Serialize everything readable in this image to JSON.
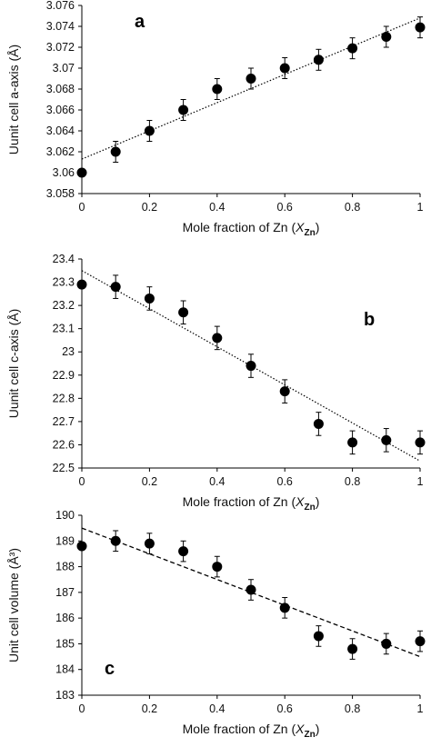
{
  "chart_data": [
    {
      "type": "scatter",
      "panel_label": "a",
      "xlabel_text": "Mole fraction of Zn (",
      "xlabel_var": "X",
      "xlabel_sub": "Zn",
      "xlabel_close": ")",
      "ylabel": "Uunit cell a-axis (Å)",
      "xlim": [
        0,
        1
      ],
      "ylim": [
        3.058,
        3.076
      ],
      "x_ticks": [
        "0",
        "0.2",
        "0.4",
        "0.6",
        "0.8",
        "1"
      ],
      "y_ticks": [
        "3.058",
        "3.06",
        "3.062",
        "3.064",
        "3.066",
        "3.068",
        "3.07",
        "3.072",
        "3.074",
        "3.076"
      ],
      "grid": false,
      "trendline": {
        "style": "dotted",
        "y_at_x0": 3.0613,
        "y_at_x1": 3.0748
      },
      "series": [
        {
          "x": [
            0,
            0.1,
            0.2,
            0.3,
            0.4,
            0.5,
            0.6,
            0.7,
            0.8,
            0.9,
            1.0
          ],
          "y": [
            3.06,
            3.062,
            3.064,
            3.066,
            3.068,
            3.069,
            3.07,
            3.0708,
            3.0719,
            3.073,
            3.0739
          ],
          "err": [
            0,
            0.001,
            0.001,
            0.001,
            0.001,
            0.001,
            0.001,
            0.001,
            0.001,
            0.001,
            0.001
          ]
        }
      ]
    },
    {
      "type": "scatter",
      "panel_label": "b",
      "xlabel_text": "Mole fraction of Zn (",
      "xlabel_var": "X",
      "xlabel_sub": "Zn",
      "xlabel_close": ")",
      "ylabel": "Uunit cell c-axis (Å)",
      "xlim": [
        0,
        1
      ],
      "ylim": [
        22.5,
        23.4
      ],
      "x_ticks": [
        "0",
        "0.2",
        "0.4",
        "0.6",
        "0.8",
        "1"
      ],
      "y_ticks": [
        "22.5",
        "22.6",
        "22.7",
        "22.8",
        "22.9",
        "23",
        "23.1",
        "23.2",
        "23.3",
        "23.4"
      ],
      "grid": false,
      "trendline": {
        "style": "dotted",
        "y_at_x0": 23.35,
        "y_at_x1": 22.53
      },
      "series": [
        {
          "x": [
            0,
            0.1,
            0.2,
            0.3,
            0.4,
            0.5,
            0.6,
            0.7,
            0.8,
            0.9,
            1.0
          ],
          "y": [
            23.29,
            23.28,
            23.23,
            23.17,
            23.06,
            22.94,
            22.83,
            22.69,
            22.61,
            22.62,
            22.61
          ],
          "err": [
            0,
            0.05,
            0.05,
            0.05,
            0.05,
            0.05,
            0.05,
            0.05,
            0.05,
            0.05,
            0.05
          ]
        }
      ]
    },
    {
      "type": "scatter",
      "panel_label": "c",
      "xlabel_text": "Mole fraction of Zn (",
      "xlabel_var": "X",
      "xlabel_sub": "Zn",
      "xlabel_close": ")",
      "ylabel": "Unit cell volume (Å³)",
      "xlim": [
        0,
        1
      ],
      "ylim": [
        183,
        190
      ],
      "x_ticks": [
        "0",
        "0.2",
        "0.4",
        "0.6",
        "0.8",
        "1"
      ],
      "y_ticks": [
        "183",
        "184",
        "185",
        "186",
        "187",
        "188",
        "189",
        "190"
      ],
      "grid": false,
      "trendline": {
        "style": "dashed",
        "y_at_x0": 189.5,
        "y_at_x1": 184.5
      },
      "series": [
        {
          "x": [
            0,
            0.1,
            0.2,
            0.3,
            0.4,
            0.5,
            0.6,
            0.7,
            0.8,
            0.9,
            1.0
          ],
          "y": [
            188.8,
            189.0,
            188.9,
            188.6,
            188.0,
            187.1,
            186.4,
            185.3,
            184.8,
            185.0,
            185.1
          ],
          "err": [
            0,
            0.4,
            0.4,
            0.4,
            0.4,
            0.4,
            0.4,
            0.4,
            0.4,
            0.4,
            0.4
          ]
        }
      ]
    }
  ]
}
